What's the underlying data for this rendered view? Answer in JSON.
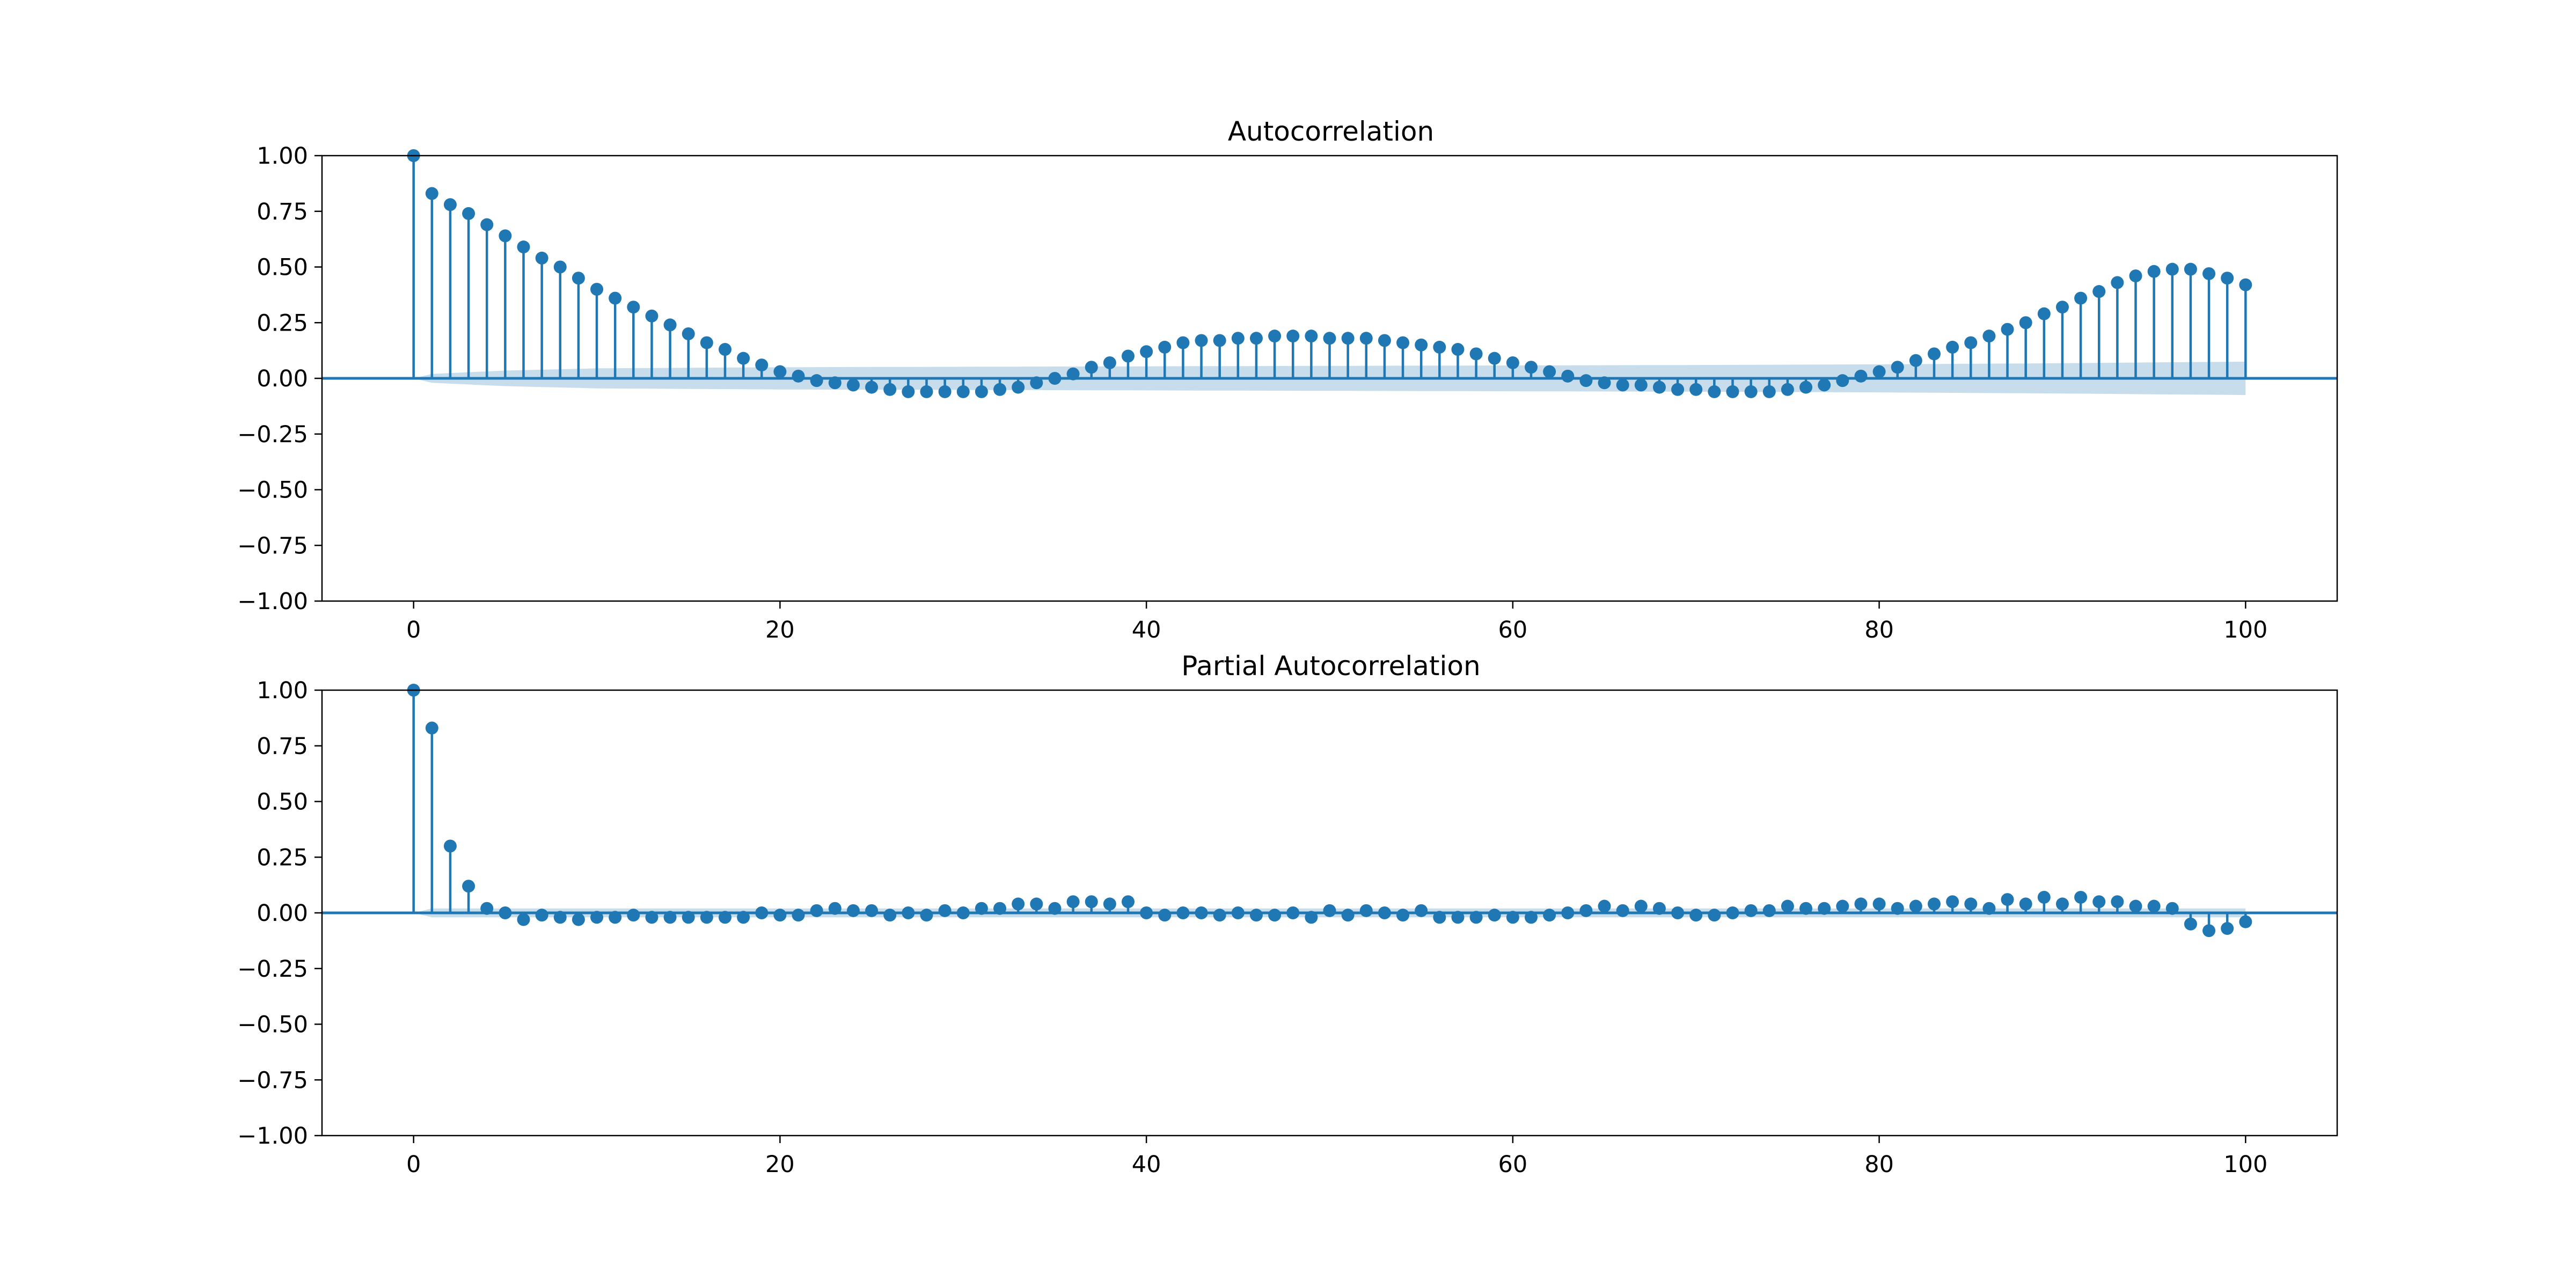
{
  "chart_data": [
    {
      "type": "stem",
      "title": "Autocorrelation",
      "xlabel": "",
      "ylabel": "",
      "xlim": [
        -5,
        105
      ],
      "ylim": [
        -1.0,
        1.0
      ],
      "x_ticks": [
        0,
        20,
        40,
        60,
        80,
        100
      ],
      "y_ticks": [
        -1.0,
        -0.75,
        -0.5,
        -0.25,
        0.0,
        0.25,
        0.5,
        0.75,
        1.0
      ],
      "x_tick_labels": [
        "0",
        "20",
        "40",
        "60",
        "80",
        "100"
      ],
      "y_tick_labels": [
        "−1.00",
        "−0.75",
        "−0.50",
        "−0.25",
        "0.00",
        "0.25",
        "0.50",
        "0.75",
        "1.00"
      ],
      "grid": false,
      "confidence_band": {
        "lags": [
          0,
          1,
          5,
          10,
          20,
          30,
          40,
          50,
          60,
          70,
          80,
          90,
          100
        ],
        "upper": [
          0.0,
          0.02,
          0.035,
          0.045,
          0.05,
          0.052,
          0.054,
          0.056,
          0.058,
          0.06,
          0.063,
          0.068,
          0.075
        ],
        "lower": [
          0.0,
          -0.02,
          -0.035,
          -0.045,
          -0.05,
          -0.052,
          -0.054,
          -0.056,
          -0.058,
          -0.06,
          -0.063,
          -0.068,
          -0.075
        ]
      },
      "lags": [
        0,
        1,
        2,
        3,
        4,
        5,
        6,
        7,
        8,
        9,
        10,
        11,
        12,
        13,
        14,
        15,
        16,
        17,
        18,
        19,
        20,
        21,
        22,
        23,
        24,
        25,
        26,
        27,
        28,
        29,
        30,
        31,
        32,
        33,
        34,
        35,
        36,
        37,
        38,
        39,
        40,
        41,
        42,
        43,
        44,
        45,
        46,
        47,
        48,
        49,
        50,
        51,
        52,
        53,
        54,
        55,
        56,
        57,
        58,
        59,
        60,
        61,
        62,
        63,
        64,
        65,
        66,
        67,
        68,
        69,
        70,
        71,
        72,
        73,
        74,
        75,
        76,
        77,
        78,
        79,
        80,
        81,
        82,
        83,
        84,
        85,
        86,
        87,
        88,
        89,
        90,
        91,
        92,
        93,
        94,
        95,
        96,
        97,
        98,
        99,
        100
      ],
      "values": [
        1.0,
        0.83,
        0.78,
        0.74,
        0.69,
        0.64,
        0.59,
        0.54,
        0.5,
        0.45,
        0.4,
        0.36,
        0.32,
        0.28,
        0.24,
        0.2,
        0.16,
        0.13,
        0.09,
        0.06,
        0.03,
        0.01,
        -0.01,
        -0.02,
        -0.03,
        -0.04,
        -0.05,
        -0.06,
        -0.06,
        -0.06,
        -0.06,
        -0.06,
        -0.05,
        -0.04,
        -0.02,
        0.0,
        0.02,
        0.05,
        0.07,
        0.1,
        0.12,
        0.14,
        0.16,
        0.17,
        0.17,
        0.18,
        0.18,
        0.19,
        0.19,
        0.19,
        0.18,
        0.18,
        0.18,
        0.17,
        0.16,
        0.15,
        0.14,
        0.13,
        0.11,
        0.09,
        0.07,
        0.05,
        0.03,
        0.01,
        -0.01,
        -0.02,
        -0.03,
        -0.03,
        -0.04,
        -0.05,
        -0.05,
        -0.06,
        -0.06,
        -0.06,
        -0.06,
        -0.05,
        -0.04,
        -0.03,
        -0.01,
        0.01,
        0.03,
        0.05,
        0.08,
        0.11,
        0.14,
        0.16,
        0.19,
        0.22,
        0.25,
        0.29,
        0.32,
        0.36,
        0.39,
        0.43,
        0.46,
        0.48,
        0.49,
        0.49,
        0.47,
        0.45,
        0.42
      ]
    },
    {
      "type": "stem",
      "title": "Partial Autocorrelation",
      "xlabel": "",
      "ylabel": "",
      "xlim": [
        -5,
        105
      ],
      "ylim": [
        -1.0,
        1.0
      ],
      "x_ticks": [
        0,
        20,
        40,
        60,
        80,
        100
      ],
      "y_ticks": [
        -1.0,
        -0.75,
        -0.5,
        -0.25,
        0.0,
        0.25,
        0.5,
        0.75,
        1.0
      ],
      "x_tick_labels": [
        "0",
        "20",
        "40",
        "60",
        "80",
        "100"
      ],
      "y_tick_labels": [
        "−1.00",
        "−0.75",
        "−0.50",
        "−0.25",
        "0.00",
        "0.25",
        "0.50",
        "0.75",
        "1.00"
      ],
      "grid": false,
      "confidence_band": {
        "lags": [
          0,
          1,
          100
        ],
        "upper": [
          0.0,
          0.02,
          0.02
        ],
        "lower": [
          0.0,
          -0.02,
          -0.02
        ]
      },
      "lags": [
        0,
        1,
        2,
        3,
        4,
        5,
        6,
        7,
        8,
        9,
        10,
        11,
        12,
        13,
        14,
        15,
        16,
        17,
        18,
        19,
        20,
        21,
        22,
        23,
        24,
        25,
        26,
        27,
        28,
        29,
        30,
        31,
        32,
        33,
        34,
        35,
        36,
        37,
        38,
        39,
        40,
        41,
        42,
        43,
        44,
        45,
        46,
        47,
        48,
        49,
        50,
        51,
        52,
        53,
        54,
        55,
        56,
        57,
        58,
        59,
        60,
        61,
        62,
        63,
        64,
        65,
        66,
        67,
        68,
        69,
        70,
        71,
        72,
        73,
        74,
        75,
        76,
        77,
        78,
        79,
        80,
        81,
        82,
        83,
        84,
        85,
        86,
        87,
        88,
        89,
        90,
        91,
        92,
        93,
        94,
        95,
        96,
        97,
        98,
        99,
        100
      ],
      "values": [
        1.0,
        0.83,
        0.3,
        0.12,
        0.02,
        0.0,
        -0.03,
        -0.01,
        -0.02,
        -0.03,
        -0.02,
        -0.02,
        -0.01,
        -0.02,
        -0.02,
        -0.02,
        -0.02,
        -0.02,
        -0.02,
        0.0,
        -0.01,
        -0.01,
        0.01,
        0.02,
        0.01,
        0.01,
        -0.01,
        0.0,
        -0.01,
        0.01,
        0.0,
        0.02,
        0.02,
        0.04,
        0.04,
        0.02,
        0.05,
        0.05,
        0.04,
        0.05,
        0.0,
        -0.01,
        0.0,
        0.0,
        -0.01,
        0.0,
        -0.01,
        -0.01,
        0.0,
        -0.02,
        0.01,
        -0.01,
        0.01,
        0.0,
        -0.01,
        0.01,
        -0.02,
        -0.02,
        -0.02,
        -0.01,
        -0.02,
        -0.02,
        -0.01,
        0.0,
        0.01,
        0.03,
        0.01,
        0.03,
        0.02,
        0.0,
        -0.01,
        -0.01,
        0.0,
        0.01,
        0.01,
        0.03,
        0.02,
        0.02,
        0.03,
        0.04,
        0.04,
        0.02,
        0.03,
        0.04,
        0.05,
        0.04,
        0.02,
        0.06,
        0.04,
        0.07,
        0.04,
        0.07,
        0.05,
        0.05,
        0.03,
        0.03,
        0.02,
        -0.05,
        -0.08,
        -0.07,
        -0.04
      ]
    }
  ],
  "colors": {
    "series": "#1f77b4",
    "band": "#1f77b4",
    "axis": "#000000"
  }
}
